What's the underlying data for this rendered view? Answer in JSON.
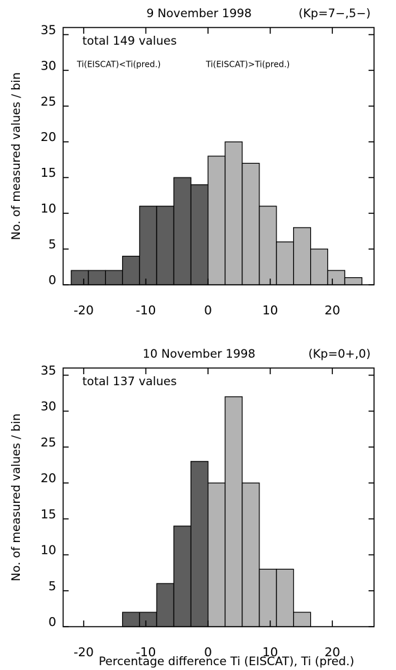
{
  "chart_data": [
    {
      "type": "histogram",
      "title": "9 November 1998",
      "subtitle": "(Kp=7−,5−)",
      "annotations": [
        "total 149 values",
        "Ti(EISCAT)<Ti(pred.)",
        "Ti(EISCAT)>Ti(pred.)"
      ],
      "ylabel": "No. of measured values / bin",
      "bins": [
        -22,
        -19.25,
        -16.5,
        -13.75,
        -11,
        -8.25,
        -5.5,
        -2.75,
        0,
        2.75,
        5.5,
        8.25,
        11,
        13.75,
        16.5,
        19.25,
        22,
        24.75
      ],
      "values": [
        2,
        2,
        2,
        4,
        11,
        11,
        15,
        14,
        18,
        20,
        17,
        11,
        6,
        8,
        5,
        2,
        1
      ],
      "color_negative": "#5e5e5e",
      "color_positive": "#b3b3b3",
      "xlim": [
        -23.3,
        26.7
      ],
      "ylim": [
        0,
        36
      ],
      "xticks": [
        -20,
        -10,
        0,
        10,
        20
      ],
      "yticks": [
        0,
        5,
        10,
        15,
        20,
        25,
        30,
        35
      ]
    },
    {
      "type": "histogram",
      "title": "10 November 1998",
      "subtitle": "(Kp=0+,0)",
      "annotations": [
        "total 137 values"
      ],
      "ylabel": "No. of measured values / bin",
      "xlabel": "Percentage difference Ti (EISCAT), Ti (pred.)",
      "bins": [
        -13.75,
        -11,
        -8.25,
        -5.5,
        -2.75,
        0,
        2.75,
        5.5,
        8.25,
        11,
        13.75,
        16.5
      ],
      "values": [
        2,
        2,
        6,
        14,
        23,
        20,
        32,
        20,
        8,
        8,
        2
      ],
      "color_negative": "#5e5e5e",
      "color_positive": "#b3b3b3",
      "xlim": [
        -23.3,
        26.7
      ],
      "ylim": [
        0,
        36
      ],
      "xticks": [
        -20,
        -10,
        0,
        10,
        20
      ],
      "yticks": [
        0,
        5,
        10,
        15,
        20,
        25,
        30,
        35
      ]
    }
  ]
}
